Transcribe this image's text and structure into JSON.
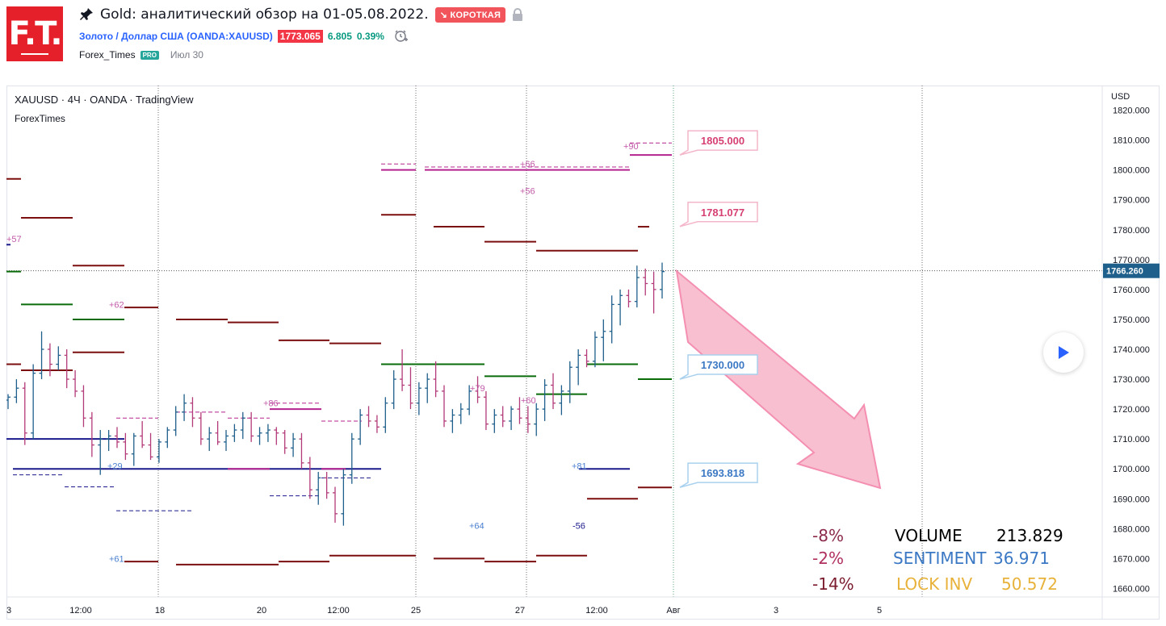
{
  "header": {
    "logo_text": "F.T.",
    "idea_title": "Gold: аналитический обзор на 01-05.08.2022.",
    "badge": "↘ КОРОТКАЯ",
    "symbol": "Золото / Доллар США (OANDA:XAUUSD)",
    "price": "1773.065",
    "change_abs": "6.805",
    "change_pct": "0.39%",
    "author": "Forex_Times",
    "author_badge": "PRO",
    "date": "Июл 30"
  },
  "legend": {
    "line1": "XAUUSD · 4Ч · OANDA · TradingView",
    "line2": "ForexTimes"
  },
  "colors": {
    "dark_red": "#7b0f0f",
    "magenta": "#b5238f",
    "dark_green": "#0a6b0a",
    "navy": "#1a1a8c",
    "candle_up": "#1f5f8b",
    "candle_down": "#b33a78",
    "arrow_fill": "#f7b4c8",
    "arrow_stroke": "#f48fb1",
    "pink_label": "#d63f73",
    "blue_label": "#3b78c4"
  },
  "chart_data": {
    "type": "candlestick",
    "symbol": "XAUUSD",
    "interval": "4Ч",
    "currency": "USD",
    "ylim": [
      1655,
      1825
    ],
    "y_ticks": [
      1820,
      1810,
      1800,
      1790,
      1780,
      1770,
      1760,
      1750,
      1740,
      1730,
      1720,
      1710,
      1700,
      1690,
      1680,
      1670,
      1660
    ],
    "y_tick_labels": [
      "1820.000",
      "1810.000",
      "1800.000",
      "1790.000",
      "1780.000",
      "1770.000",
      "1760.000",
      "1750.000",
      "1740.000",
      "1730.000",
      "1720.000",
      "1710.000",
      "1700.000",
      "1690.000",
      "1680.000",
      "1670.000",
      "1660.000"
    ],
    "x_tick_labels": [
      "3",
      "12:00",
      "18",
      "20",
      "12:00",
      "25",
      "27",
      "12:00",
      "Авг",
      "3",
      "5"
    ],
    "last_price": 1766.26,
    "last_price_label": "1766.260",
    "target_labels": [
      {
        "value": 1805,
        "text": "1805.000",
        "color": "pink"
      },
      {
        "value": 1781.077,
        "text": "1781.077",
        "color": "pink"
      },
      {
        "value": 1730,
        "text": "1730.000",
        "color": "blue"
      },
      {
        "value": 1693.818,
        "text": "1693.818",
        "color": "blue"
      }
    ],
    "level_annotations": [
      "+57",
      "+62",
      "+86",
      "+79",
      "+60",
      "+66",
      "+56",
      "+90",
      "+29",
      "+81",
      "+64",
      "-56",
      "+61"
    ],
    "candles": [
      [
        1723,
        1725,
        1720,
        1724
      ],
      [
        1724,
        1730,
        1722,
        1727
      ],
      [
        1727,
        1729,
        1708,
        1712
      ],
      [
        1712,
        1735,
        1710,
        1732
      ],
      [
        1732,
        1746,
        1730,
        1740
      ],
      [
        1740,
        1742,
        1731,
        1735
      ],
      [
        1735,
        1741,
        1733,
        1738
      ],
      [
        1738,
        1740,
        1727,
        1730
      ],
      [
        1730,
        1733,
        1724,
        1726
      ],
      [
        1726,
        1728,
        1714,
        1717
      ],
      [
        1717,
        1719,
        1704,
        1708
      ],
      [
        1708,
        1713,
        1698,
        1710
      ],
      [
        1710,
        1713,
        1706,
        1711
      ],
      [
        1711,
        1714,
        1707,
        1709
      ],
      [
        1709,
        1712,
        1703,
        1705
      ],
      [
        1705,
        1712,
        1701,
        1711
      ],
      [
        1711,
        1716,
        1707,
        1708
      ],
      [
        1708,
        1712,
        1703,
        1704
      ],
      [
        1704,
        1710,
        1702,
        1709
      ],
      [
        1709,
        1714,
        1707,
        1713
      ],
      [
        1713,
        1721,
        1711,
        1719
      ],
      [
        1719,
        1725,
        1716,
        1722
      ],
      [
        1722,
        1724,
        1714,
        1717
      ],
      [
        1717,
        1719,
        1708,
        1710
      ],
      [
        1710,
        1714,
        1706,
        1712
      ],
      [
        1712,
        1716,
        1708,
        1709
      ],
      [
        1709,
        1713,
        1706,
        1711
      ],
      [
        1711,
        1715,
        1709,
        1713
      ],
      [
        1713,
        1719,
        1710,
        1717
      ],
      [
        1717,
        1719,
        1709,
        1711
      ],
      [
        1711,
        1714,
        1708,
        1712
      ],
      [
        1712,
        1715,
        1709,
        1713
      ],
      [
        1713,
        1714,
        1708,
        1712
      ],
      [
        1712,
        1713,
        1705,
        1707
      ],
      [
        1707,
        1712,
        1704,
        1710
      ],
      [
        1710,
        1712,
        1700,
        1702
      ],
      [
        1702,
        1704,
        1690,
        1693
      ],
      [
        1693,
        1699,
        1688,
        1697
      ],
      [
        1697,
        1699,
        1690,
        1692
      ],
      [
        1692,
        1694,
        1682,
        1685
      ],
      [
        1685,
        1700,
        1681,
        1698
      ],
      [
        1698,
        1712,
        1695,
        1710
      ],
      [
        1710,
        1720,
        1708,
        1718
      ],
      [
        1718,
        1721,
        1714,
        1716
      ],
      [
        1716,
        1718,
        1712,
        1714
      ],
      [
        1714,
        1724,
        1712,
        1722
      ],
      [
        1722,
        1733,
        1720,
        1730
      ],
      [
        1730,
        1740,
        1726,
        1728
      ],
      [
        1728,
        1734,
        1720,
        1722
      ],
      [
        1722,
        1729,
        1718,
        1727
      ],
      [
        1727,
        1732,
        1722,
        1730
      ],
      [
        1730,
        1736,
        1724,
        1726
      ],
      [
        1726,
        1728,
        1714,
        1716
      ],
      [
        1716,
        1720,
        1712,
        1718
      ],
      [
        1718,
        1722,
        1715,
        1720
      ],
      [
        1720,
        1728,
        1718,
        1726
      ],
      [
        1726,
        1731,
        1722,
        1724
      ],
      [
        1724,
        1726,
        1713,
        1715
      ],
      [
        1715,
        1720,
        1712,
        1718
      ],
      [
        1718,
        1721,
        1714,
        1716
      ],
      [
        1716,
        1721,
        1713,
        1720
      ],
      [
        1720,
        1724,
        1715,
        1717
      ],
      [
        1717,
        1721,
        1712,
        1715
      ],
      [
        1715,
        1722,
        1711,
        1720
      ],
      [
        1720,
        1730,
        1716,
        1728
      ],
      [
        1728,
        1732,
        1720,
        1722
      ],
      [
        1722,
        1728,
        1718,
        1726
      ],
      [
        1726,
        1736,
        1722,
        1734
      ],
      [
        1734,
        1740,
        1728,
        1738
      ],
      [
        1738,
        1740,
        1734,
        1736
      ],
      [
        1736,
        1746,
        1734,
        1744
      ],
      [
        1744,
        1750,
        1736,
        1746
      ],
      [
        1746,
        1758,
        1742,
        1755
      ],
      [
        1755,
        1760,
        1748,
        1758
      ],
      [
        1758,
        1760,
        1754,
        1756
      ],
      [
        1756,
        1768,
        1754,
        1764
      ],
      [
        1764,
        1767,
        1758,
        1762
      ],
      [
        1762,
        1766,
        1752,
        1760
      ],
      [
        1760,
        1769,
        1757,
        1766
      ]
    ]
  },
  "stats": [
    {
      "pct": "-8%",
      "label": "VOLUME",
      "value": "213.829"
    },
    {
      "pct": "-2%",
      "label": "SENTIMENT",
      "value": "36.971"
    },
    {
      "pct": "-14%",
      "label": "LOCK INV",
      "value": "50.572"
    }
  ]
}
